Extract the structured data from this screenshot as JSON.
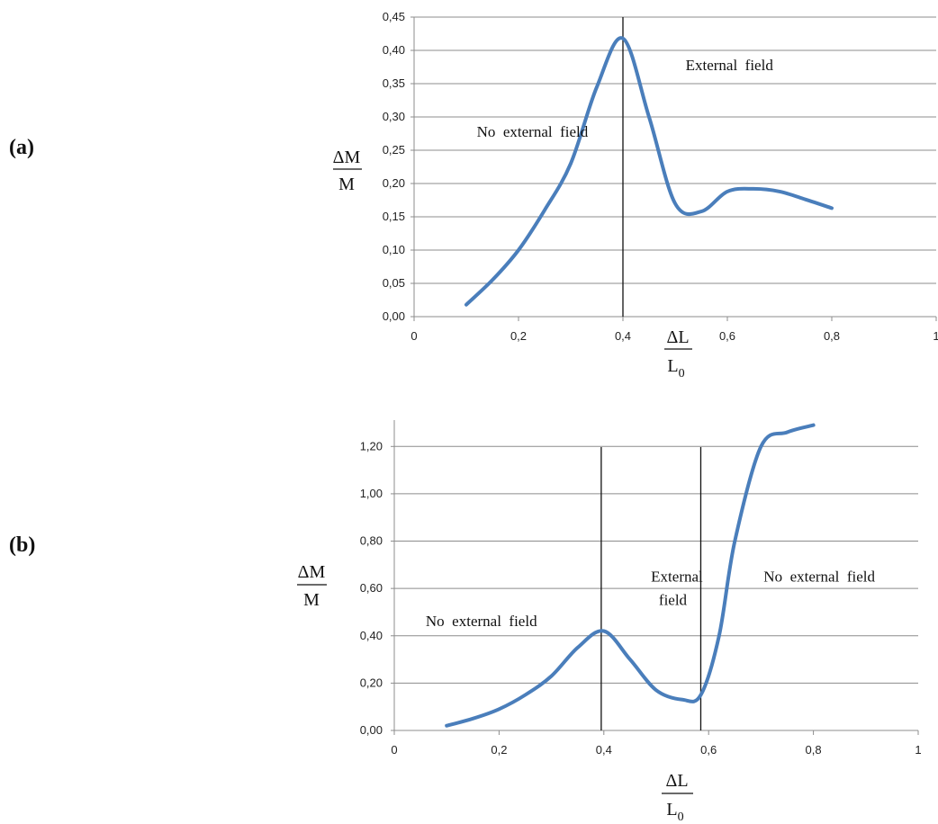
{
  "chart_data": [
    {
      "type": "line",
      "panel_label": "(a)",
      "ylabel_num": "ΔM",
      "ylabel_den": "M",
      "xlabel_num": "ΔL",
      "xlabel_den_base": "L",
      "xlabel_den_sub": "0",
      "xlim": [
        0,
        1
      ],
      "ylim": [
        0,
        0.45
      ],
      "x_ticks": [
        0,
        0.2,
        0.4,
        0.6,
        0.8,
        1
      ],
      "x_tick_labels": [
        "0",
        "0,2",
        "0,4",
        "0,6",
        "0,8",
        "1"
      ],
      "y_ticks": [
        0,
        0.05,
        0.1,
        0.15,
        0.2,
        0.25,
        0.3,
        0.35,
        0.4,
        0.45
      ],
      "y_tick_labels": [
        "0,00",
        "0,05",
        "0,10",
        "0,15",
        "0,20",
        "0,25",
        "0,30",
        "0,35",
        "0,40",
        "0,45"
      ],
      "grid": true,
      "vertical_lines": [
        0.4
      ],
      "series": [
        {
          "color": "#4a7ebb",
          "x": [
            0.1,
            0.15,
            0.2,
            0.25,
            0.3,
            0.35,
            0.4,
            0.45,
            0.5,
            0.55,
            0.6,
            0.65,
            0.7,
            0.75,
            0.8
          ],
          "y": [
            0.018,
            0.055,
            0.1,
            0.16,
            0.23,
            0.345,
            0.418,
            0.3,
            0.17,
            0.158,
            0.188,
            0.192,
            0.188,
            0.176,
            0.163
          ]
        }
      ],
      "annotations": [
        {
          "text": "No  external  field",
          "x": 0.12,
          "y": 0.27
        },
        {
          "text": "External  field",
          "x": 0.52,
          "y": 0.37
        }
      ]
    },
    {
      "type": "line",
      "panel_label": "(b)",
      "ylabel_num": "ΔM",
      "ylabel_den": "M",
      "xlabel_num": "ΔL",
      "xlabel_den_base": "L",
      "xlabel_den_sub": "0",
      "xlim": [
        0,
        1
      ],
      "ylim": [
        0,
        1.3
      ],
      "x_ticks": [
        0,
        0.2,
        0.4,
        0.6,
        0.8,
        1
      ],
      "x_tick_labels": [
        "0",
        "0,2",
        "0,4",
        "0,6",
        "0,8",
        "1"
      ],
      "y_ticks": [
        0,
        0.2,
        0.4,
        0.6,
        0.8,
        1.0,
        1.2
      ],
      "y_tick_labels": [
        "0,00",
        "0,20",
        "0,40",
        "0,60",
        "0,80",
        "1,00",
        "1,20"
      ],
      "grid": true,
      "vertical_lines": [
        0.395,
        0.585
      ],
      "series": [
        {
          "color": "#4a7ebb",
          "x": [
            0.1,
            0.15,
            0.2,
            0.25,
            0.3,
            0.35,
            0.4,
            0.45,
            0.5,
            0.55,
            0.585,
            0.62,
            0.65,
            0.7,
            0.75,
            0.8
          ],
          "y": [
            0.02,
            0.05,
            0.09,
            0.15,
            0.23,
            0.35,
            0.42,
            0.3,
            0.17,
            0.13,
            0.15,
            0.4,
            0.8,
            1.2,
            1.26,
            1.29
          ]
        }
      ],
      "annotations": [
        {
          "text": "No  external  field",
          "x": 0.06,
          "y": 0.44
        },
        {
          "text": "External",
          "x": 0.49,
          "y": 0.63
        },
        {
          "text": "field",
          "x": 0.505,
          "y": 0.53
        },
        {
          "text": "No  external  field",
          "x": 0.705,
          "y": 0.63
        }
      ]
    }
  ]
}
